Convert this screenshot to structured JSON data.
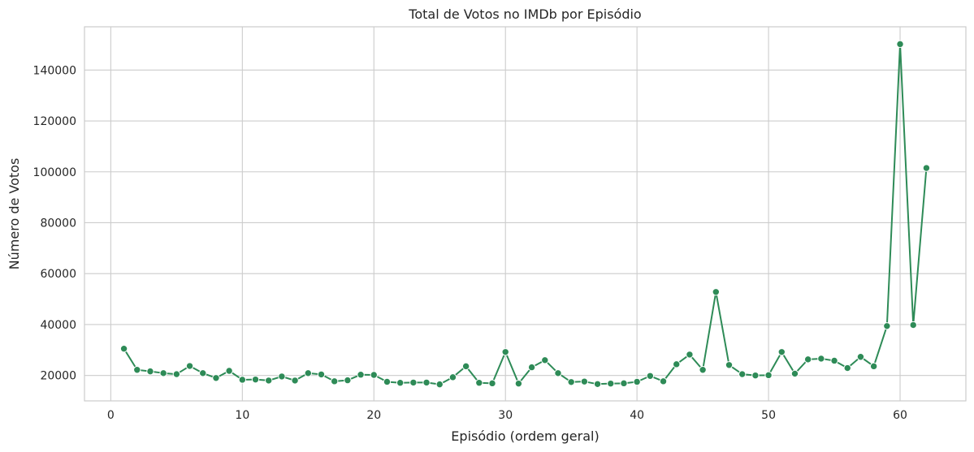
{
  "chart_data": {
    "type": "line",
    "title": "Total de Votos no IMDb por Episódio",
    "xlabel": "Episódio (ordem geral)",
    "ylabel": "Número de Votos",
    "xlim": [
      -2,
      65
    ],
    "ylim": [
      10000,
      157000
    ],
    "xticks": [
      0,
      10,
      20,
      30,
      40,
      50,
      60
    ],
    "xtick_labels": [
      "0",
      "10",
      "20",
      "30",
      "40",
      "50",
      "60"
    ],
    "yticks": [
      20000,
      40000,
      60000,
      80000,
      100000,
      120000,
      140000
    ],
    "ytick_labels": [
      "20000",
      "40000",
      "60000",
      "80000",
      "100000",
      "120000",
      "140000"
    ],
    "grid": true,
    "color": "#2e8b57",
    "series": [
      {
        "x": [
          1,
          2,
          3,
          4,
          5,
          6,
          7,
          8,
          9,
          10,
          11,
          12,
          13,
          14,
          15,
          16,
          17,
          18,
          19,
          20,
          21,
          22,
          23,
          24,
          25,
          26,
          27,
          28,
          29,
          30,
          31,
          32,
          33,
          34,
          35,
          36,
          37,
          38,
          39,
          40,
          41,
          42,
          43,
          44,
          45,
          46,
          47,
          48,
          49,
          50,
          51,
          52,
          53,
          54,
          55,
          56,
          57,
          58,
          59,
          60,
          61,
          62
        ],
        "values": [
          30500,
          22200,
          21600,
          20900,
          20500,
          23700,
          20900,
          19000,
          21800,
          18300,
          18400,
          18000,
          19600,
          18000,
          20900,
          20400,
          17700,
          18100,
          20300,
          20200,
          17500,
          17100,
          17200,
          17200,
          16500,
          19300,
          23600,
          17100,
          16900,
          29200,
          16800,
          23200,
          26000,
          20900,
          17400,
          17600,
          16600,
          16800,
          16900,
          17500,
          19800,
          17700,
          24400,
          28200,
          22200,
          52800,
          24100,
          20500,
          20000,
          20100,
          29200,
          20700,
          26300,
          26600,
          25800,
          22900,
          27300,
          23600,
          39400,
          150200,
          39800,
          101500
        ]
      }
    ]
  }
}
